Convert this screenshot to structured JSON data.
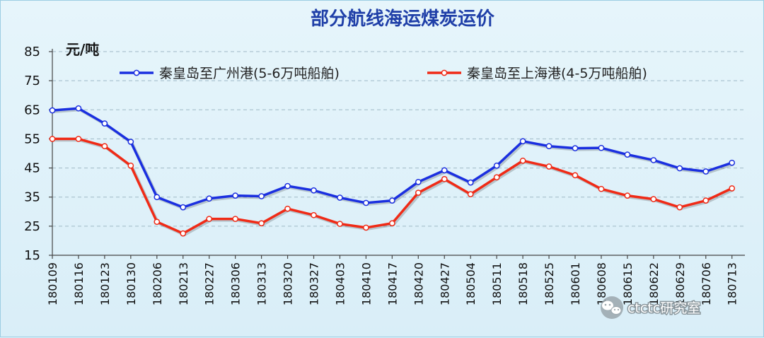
{
  "chart_data": {
    "type": "line",
    "title": "部分航线海运煤炭运价",
    "ylabel": "元/吨",
    "xlabel": "",
    "ylim": [
      15,
      85
    ],
    "yticks": [
      15,
      25,
      35,
      45,
      55,
      65,
      75,
      85
    ],
    "grid": true,
    "legend_position": "top",
    "categories": [
      "180109",
      "180116",
      "180123",
      "180130",
      "180206",
      "180213",
      "180227",
      "180306",
      "180313",
      "180320",
      "180327",
      "180403",
      "180410",
      "180417",
      "180420",
      "180427",
      "180504",
      "180511",
      "180518",
      "180525",
      "180601",
      "180608",
      "180615",
      "180622",
      "180629",
      "180706",
      "180713"
    ],
    "series": [
      {
        "name": "秦皇岛至广州港(5-6万吨船舶)",
        "color": "#1a2fe0",
        "values": [
          64.8,
          65.5,
          60.3,
          54,
          35,
          31.5,
          34.5,
          35.5,
          35.3,
          38.8,
          37.3,
          34.8,
          33,
          33.8,
          40.2,
          44.2,
          40,
          45.8,
          54.2,
          52.5,
          51.8,
          51.9,
          49.6,
          47.7,
          44.9,
          43.8,
          46.8
        ]
      },
      {
        "name": "秦皇岛至上海港(4-5万吨船舶)",
        "color": "#f02a16",
        "values": [
          55,
          55,
          52.5,
          45.8,
          26.5,
          22.5,
          27.5,
          27.5,
          26,
          31,
          28.8,
          25.8,
          24.5,
          26,
          36.5,
          41.2,
          36,
          41.8,
          47.5,
          45.5,
          42.5,
          37.8,
          35.5,
          34.3,
          31.5,
          33.8,
          38
        ]
      }
    ]
  },
  "watermark": {
    "text": "ctctc研究室",
    "icon": "wechat-icon"
  },
  "colors": {
    "background": "#dff1f9",
    "title": "#1f3fa8"
  }
}
